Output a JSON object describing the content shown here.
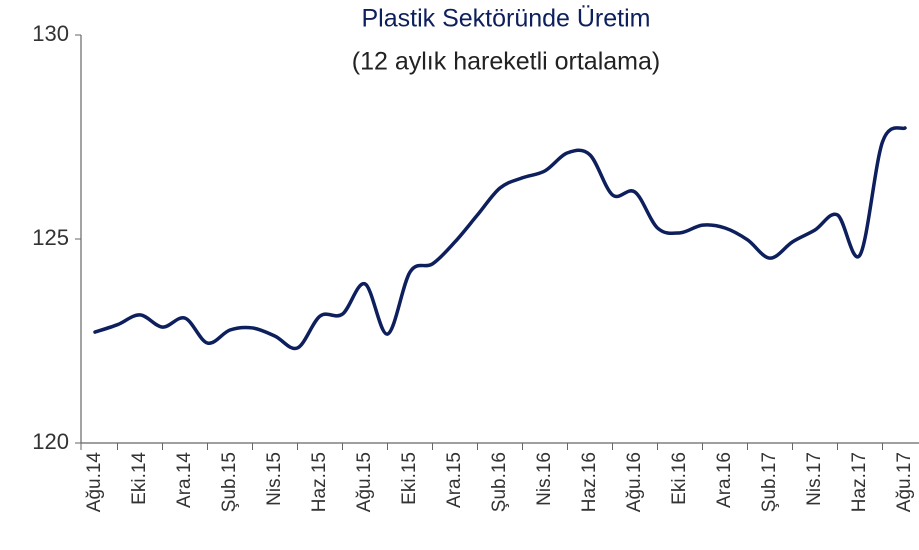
{
  "chart_data": {
    "type": "line",
    "title": "Plastik Sektöründe Üretim",
    "subtitle": "(12 aylık hareketli ortalama)",
    "categories": [
      "Ağu.14",
      null,
      "Eki.14",
      null,
      "Ara.14",
      null,
      "Şub.15",
      null,
      "Nis.15",
      null,
      "Haz.15",
      null,
      "Ağu.15",
      null,
      "Eki.15",
      null,
      "Ara.15",
      null,
      "Şub.16",
      null,
      "Nis.16",
      null,
      "Haz.16",
      null,
      "Ağu.16",
      null,
      "Eki.16",
      null,
      "Ara.16",
      null,
      "Şub.17",
      null,
      "Nis.17",
      null,
      "Haz.17",
      null,
      "Ağu.17"
    ],
    "series": [
      {
        "name": "Üretim",
        "color": "#0d1f5c",
        "values": [
          122.72,
          122.9,
          123.14,
          122.84,
          123.06,
          122.45,
          122.77,
          122.82,
          122.62,
          122.33,
          123.11,
          123.16,
          123.9,
          122.67,
          124.19,
          124.39,
          124.93,
          125.59,
          126.25,
          126.5,
          126.67,
          127.11,
          127.06,
          126.08,
          126.15,
          125.27,
          125.15,
          125.34,
          125.27,
          124.98,
          124.53,
          124.93,
          125.22,
          125.59,
          124.61,
          127.38,
          127.72
        ]
      }
    ],
    "ylim": [
      120,
      130
    ],
    "yticks": [
      120,
      125,
      130
    ],
    "grid": false
  }
}
